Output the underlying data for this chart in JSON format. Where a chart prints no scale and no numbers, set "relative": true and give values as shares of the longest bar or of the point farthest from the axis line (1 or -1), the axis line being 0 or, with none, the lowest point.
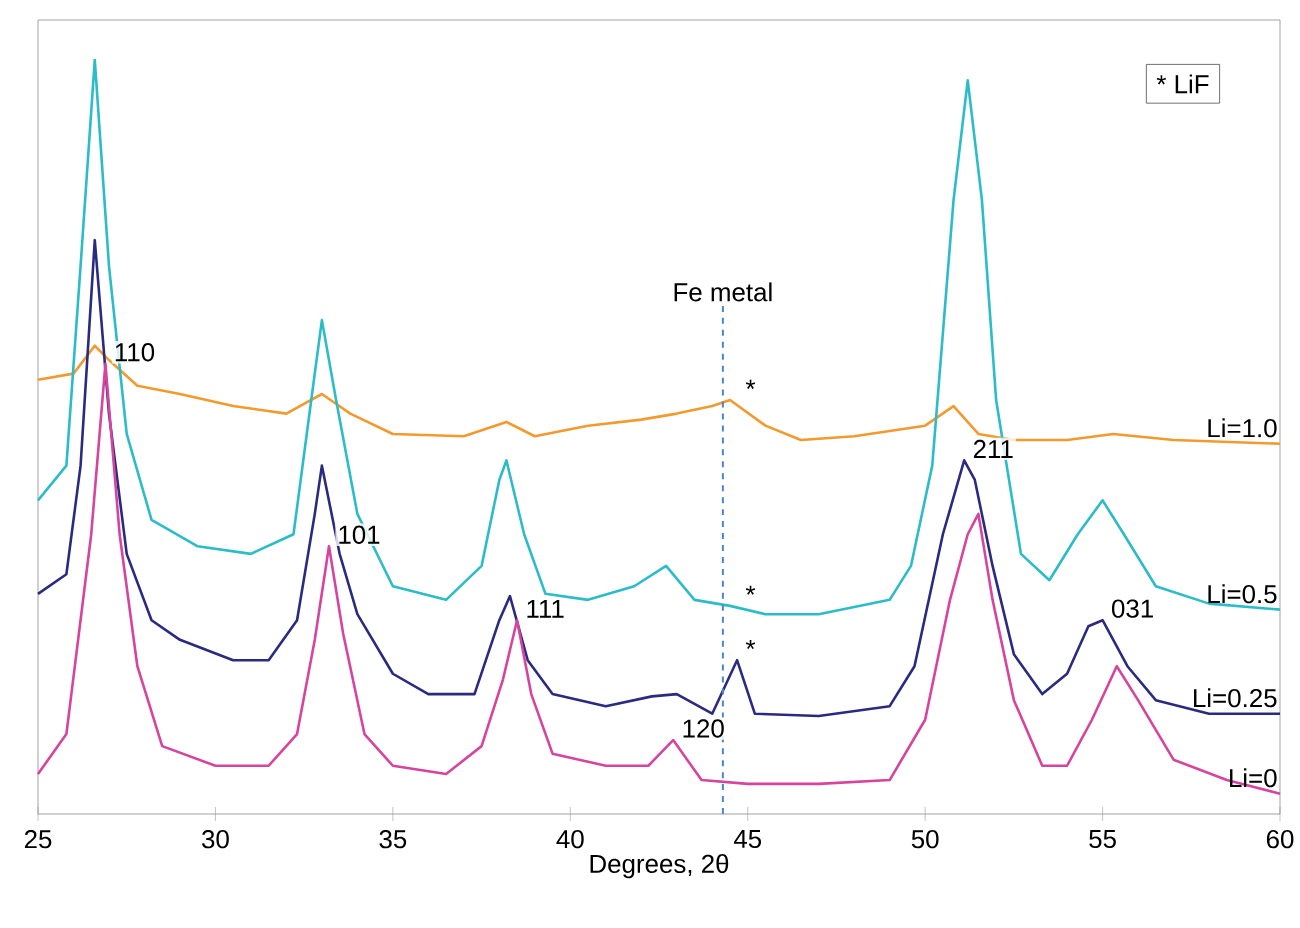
{
  "chart_data": {
    "type": "line",
    "relative": true,
    "xlabel": "Degrees, 2θ",
    "xlim": [
      25,
      60
    ],
    "xticks": [
      25,
      30,
      35,
      40,
      45,
      50,
      55,
      60
    ],
    "marker": "none",
    "line_style": "solid",
    "grid": false,
    "series": [
      {
        "name": "Li=1.0",
        "color": "#f39a2e",
        "x": [
          25,
          26,
          26.6,
          27.0,
          27.8,
          29,
          30.5,
          32,
          33,
          33.8,
          35,
          37,
          38.2,
          39,
          40.5,
          42,
          43,
          44,
          44.5,
          45.5,
          46.5,
          48,
          50,
          50.8,
          51.5,
          52.5,
          54,
          55.3,
          57,
          60
        ],
        "values": [
          0.576,
          0.584,
          0.621,
          0.602,
          0.568,
          0.557,
          0.541,
          0.531,
          0.557,
          0.531,
          0.504,
          0.501,
          0.52,
          0.501,
          0.515,
          0.523,
          0.531,
          0.541,
          0.549,
          0.515,
          0.496,
          0.501,
          0.515,
          0.541,
          0.504,
          0.496,
          0.496,
          0.504,
          0.496,
          0.491
        ]
      },
      {
        "name": "Li=0.5",
        "color": "#2bbcc8",
        "x": [
          25,
          25.8,
          26.2,
          26.6,
          27.0,
          27.5,
          28.2,
          29.5,
          31,
          32.2,
          32.7,
          33.0,
          33.4,
          34,
          35,
          36.5,
          37.5,
          38.0,
          38.2,
          38.7,
          39.3,
          40.5,
          41.8,
          42.7,
          43.5,
          44.5,
          45.5,
          47,
          49,
          49.6,
          50.2,
          50.8,
          51.2,
          51.6,
          52.0,
          52.7,
          53.5,
          54.3,
          55.0,
          55.6,
          56.5,
          58,
          60
        ],
        "values": [
          0.416,
          0.462,
          0.727,
          1.0,
          0.727,
          0.504,
          0.39,
          0.355,
          0.345,
          0.371,
          0.549,
          0.655,
          0.549,
          0.398,
          0.302,
          0.284,
          0.329,
          0.443,
          0.469,
          0.371,
          0.292,
          0.284,
          0.302,
          0.329,
          0.284,
          0.276,
          0.265,
          0.265,
          0.284,
          0.329,
          0.462,
          0.814,
          0.973,
          0.814,
          0.549,
          0.345,
          0.31,
          0.371,
          0.416,
          0.371,
          0.302,
          0.279,
          0.271
        ]
      },
      {
        "name": "Li=0.25",
        "color": "#2a2a80",
        "x": [
          25,
          25.8,
          26.2,
          26.6,
          27.0,
          27.5,
          28.2,
          29,
          30.5,
          31.5,
          32.3,
          32.8,
          33.0,
          33.5,
          34,
          35,
          36,
          37.3,
          38.0,
          38.3,
          38.8,
          39.5,
          41,
          42.3,
          43,
          44,
          44.7,
          45.2,
          47,
          49,
          49.7,
          50.5,
          51.1,
          51.4,
          51.9,
          52.5,
          53.3,
          54,
          54.6,
          55.0,
          55.7,
          56.5,
          58,
          60
        ],
        "values": [
          0.292,
          0.318,
          0.462,
          0.761,
          0.531,
          0.345,
          0.257,
          0.231,
          0.204,
          0.204,
          0.257,
          0.398,
          0.462,
          0.345,
          0.265,
          0.186,
          0.159,
          0.159,
          0.257,
          0.289,
          0.204,
          0.159,
          0.143,
          0.156,
          0.159,
          0.133,
          0.204,
          0.133,
          0.13,
          0.143,
          0.196,
          0.371,
          0.469,
          0.443,
          0.329,
          0.212,
          0.159,
          0.186,
          0.249,
          0.257,
          0.196,
          0.151,
          0.133,
          0.133
        ]
      },
      {
        "name": "Li=0",
        "color": "#d6449e",
        "x": [
          25,
          25.8,
          26.5,
          26.9,
          27.3,
          27.8,
          28.5,
          30,
          31.5,
          32.3,
          32.8,
          33.2,
          33.6,
          34.2,
          35,
          36.5,
          37.5,
          38.1,
          38.5,
          38.9,
          39.5,
          41,
          42.2,
          42.9,
          43.7,
          45,
          47,
          49,
          50,
          50.7,
          51.2,
          51.5,
          51.9,
          52.5,
          53.3,
          54,
          54.7,
          55.4,
          56,
          57,
          58.5,
          60
        ],
        "values": [
          0.053,
          0.106,
          0.371,
          0.597,
          0.371,
          0.196,
          0.09,
          0.064,
          0.064,
          0.106,
          0.231,
          0.355,
          0.239,
          0.106,
          0.064,
          0.053,
          0.09,
          0.178,
          0.257,
          0.159,
          0.08,
          0.064,
          0.064,
          0.098,
          0.045,
          0.04,
          0.04,
          0.045,
          0.125,
          0.284,
          0.371,
          0.398,
          0.284,
          0.151,
          0.064,
          0.064,
          0.125,
          0.196,
          0.151,
          0.072,
          0.045,
          0.027
        ]
      }
    ],
    "ref_lines": [
      {
        "axis": "x",
        "value": 44.3,
        "label": "Fe metal",
        "color": "#4a86c8",
        "line_style": "dashed"
      }
    ],
    "annotations": [
      {
        "text": "110",
        "x": 26.9,
        "y": 0.597
      },
      {
        "text": "101",
        "x": 33.2,
        "y": 0.355
      },
      {
        "text": "111",
        "x": 38.5,
        "y": 0.257
      },
      {
        "text": "120",
        "x": 42.9,
        "y": 0.098
      },
      {
        "text": "211",
        "x": 51.1,
        "y": 0.469
      },
      {
        "text": "031",
        "x": 55.0,
        "y": 0.257
      },
      {
        "text": "*",
        "x": 44.7,
        "y": 0.549
      },
      {
        "text": "*",
        "x": 44.7,
        "y": 0.276
      },
      {
        "text": "*",
        "x": 44.7,
        "y": 0.204
      },
      "* LiF"
    ]
  }
}
